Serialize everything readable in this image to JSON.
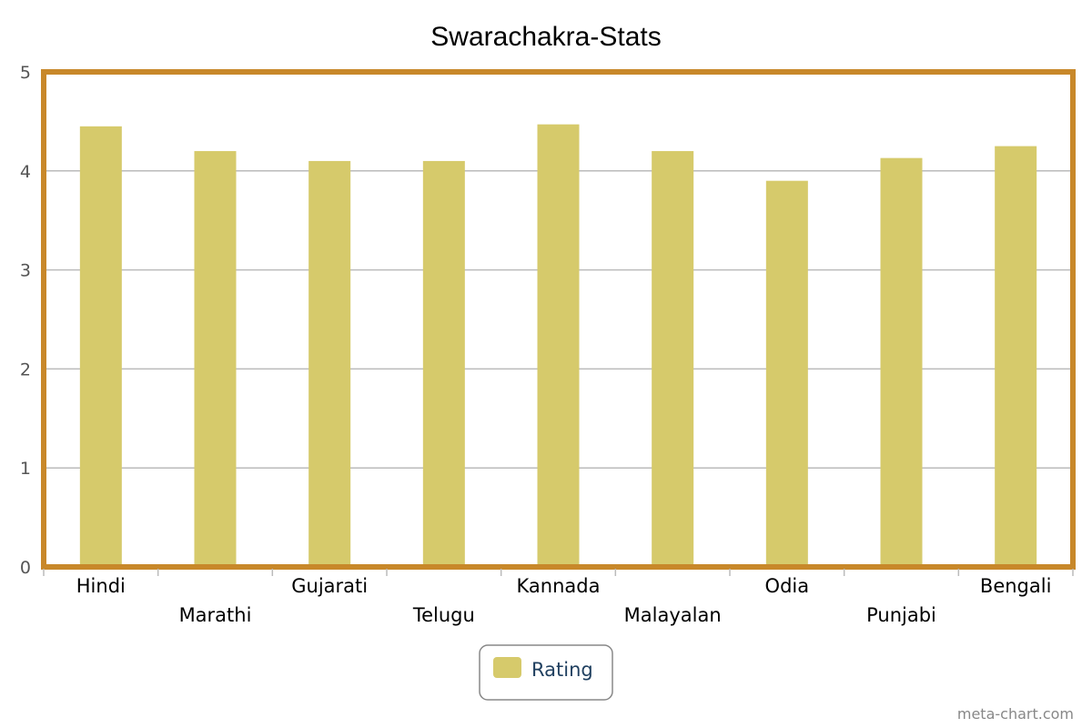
{
  "chart_data": {
    "type": "bar",
    "title": "Swarachakra-Stats",
    "xlabel": "",
    "ylabel": "",
    "categories": [
      "Hindi",
      "Marathi",
      "Gujarati",
      "Telugu",
      "Kannada",
      "Malayalan",
      "Odia",
      "Punjabi",
      "Bengali"
    ],
    "series": [
      {
        "name": "Rating",
        "values": [
          4.45,
          4.2,
          4.1,
          4.1,
          4.47,
          4.2,
          3.9,
          4.13,
          4.25
        ]
      }
    ],
    "ylim": [
      0,
      5
    ],
    "yticks": [
      0,
      1,
      2,
      3,
      4,
      5
    ],
    "grid": true,
    "legend_position": "bottom-center",
    "colors": {
      "bar": "#d6ca6b",
      "frame": "#c8882a",
      "grid": "#bbbbbb"
    }
  },
  "credit": "meta-chart.com"
}
